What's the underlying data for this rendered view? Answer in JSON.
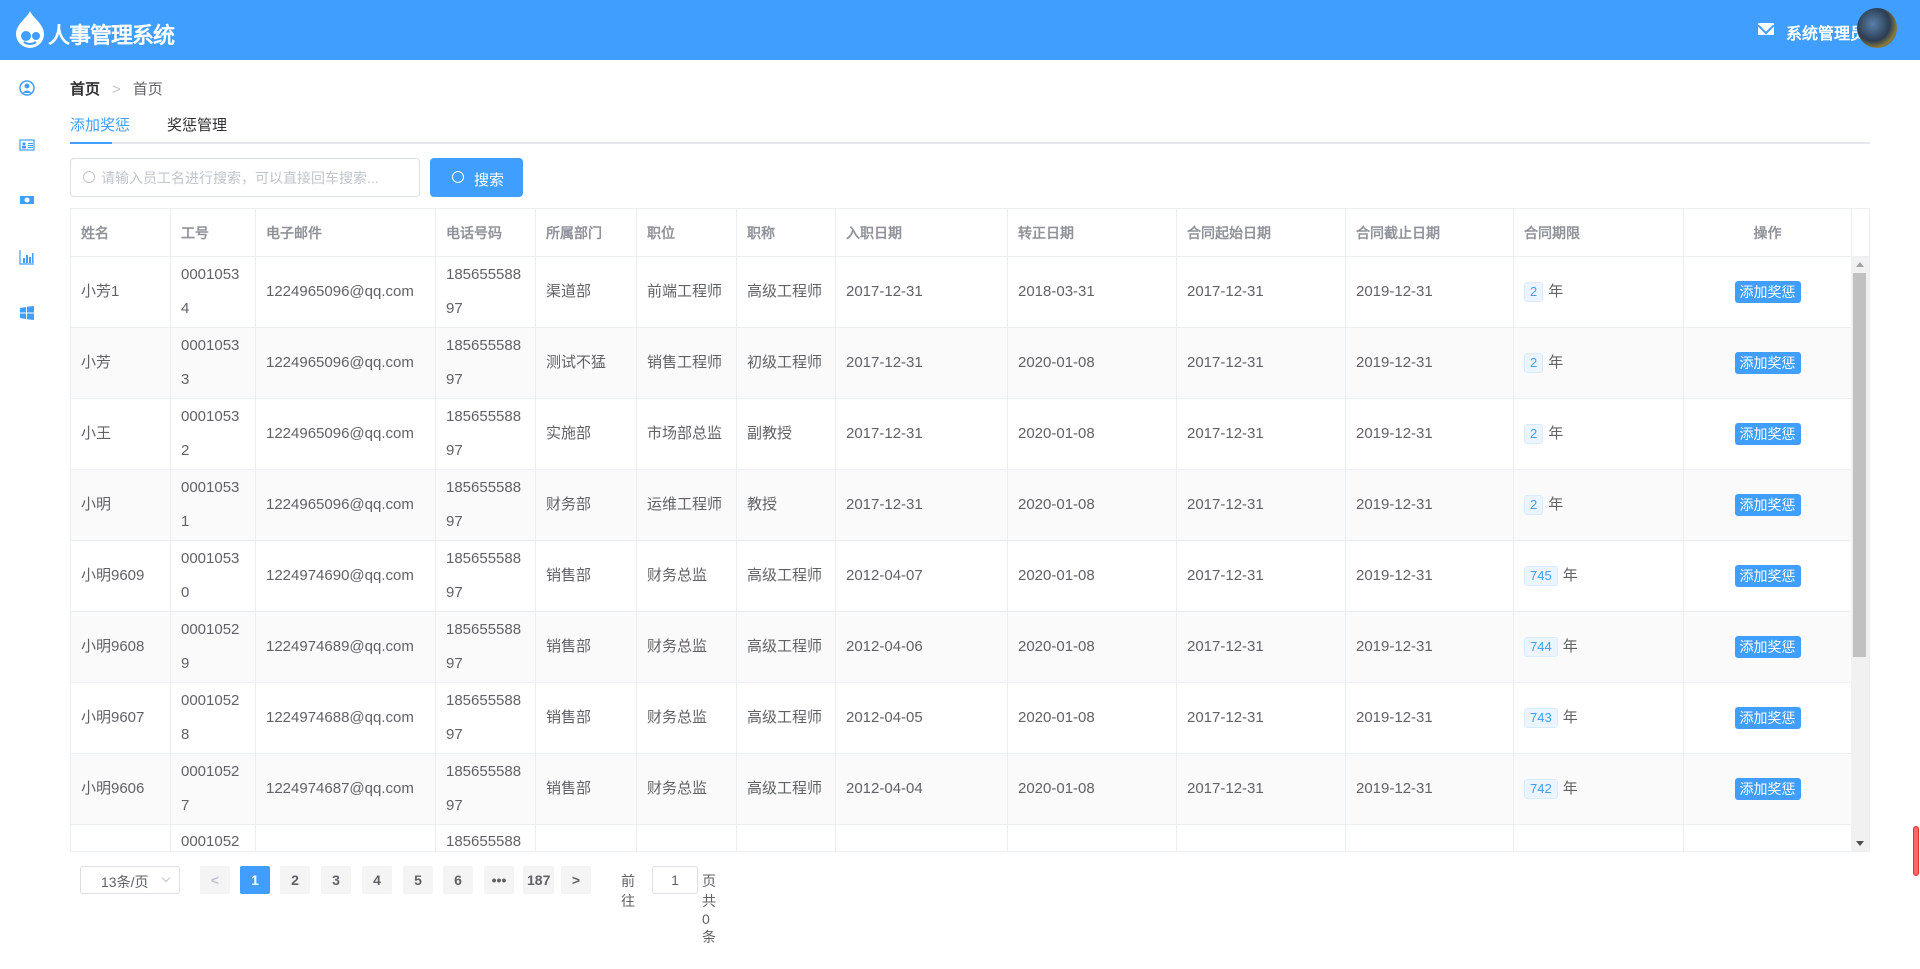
{
  "header": {
    "title": "人事管理系统",
    "user": "系统管理员",
    "brand_color": "#409EFF",
    "icons": [
      "drop-logo",
      "mail-icon",
      "avatar"
    ]
  },
  "sidebar": {
    "icons": [
      "user-circle-icon",
      "id-card-icon",
      "money-icon",
      "bar-chart-icon",
      "windows-icon"
    ]
  },
  "breadcrumb": [
    "首页",
    "首页"
  ],
  "tabs": [
    {
      "label": "添加奖惩",
      "active": true
    },
    {
      "label": "奖惩管理",
      "active": false
    }
  ],
  "search": {
    "placeholder": "请输入员工名进行搜索，可以直接回车搜索...",
    "value": "",
    "button": "搜索"
  },
  "table": {
    "columns": [
      "姓名",
      "工号",
      "电子邮件",
      "电话号码",
      "所属部门",
      "职位",
      "职称",
      "入职日期",
      "转正日期",
      "合同起始日期",
      "合同截止日期",
      "合同期限",
      "操作"
    ],
    "unit": "年",
    "action": "添加奖惩",
    "rows": [
      [
        "小芳1",
        "00010534",
        "1224965096@qq.com",
        "18565558897",
        "渠道部",
        "前端工程师",
        "高级工程师",
        "2017-12-31",
        "2018-03-31",
        "2017-12-31",
        "2019-12-31",
        "2"
      ],
      [
        "小芳",
        "00010533",
        "1224965096@qq.com",
        "18565558897",
        "测试不猛",
        "销售工程师",
        "初级工程师",
        "2017-12-31",
        "2020-01-08",
        "2017-12-31",
        "2019-12-31",
        "2"
      ],
      [
        "小王",
        "00010532",
        "1224965096@qq.com",
        "18565558897",
        "实施部",
        "市场部总监",
        "副教授",
        "2017-12-31",
        "2020-01-08",
        "2017-12-31",
        "2019-12-31",
        "2"
      ],
      [
        "小明",
        "00010531",
        "1224965096@qq.com",
        "18565558897",
        "财务部",
        "运维工程师",
        "教授",
        "2017-12-31",
        "2020-01-08",
        "2017-12-31",
        "2019-12-31",
        "2"
      ],
      [
        "小明9609",
        "00010530",
        "1224974690@qq.com",
        "18565558897",
        "销售部",
        "财务总监",
        "高级工程师",
        "2012-04-07",
        "2020-01-08",
        "2017-12-31",
        "2019-12-31",
        "745"
      ],
      [
        "小明9608",
        "00010529",
        "1224974689@qq.com",
        "18565558897",
        "销售部",
        "财务总监",
        "高级工程师",
        "2012-04-06",
        "2020-01-08",
        "2017-12-31",
        "2019-12-31",
        "744"
      ],
      [
        "小明9607",
        "00010528",
        "1224974688@qq.com",
        "18565558897",
        "销售部",
        "财务总监",
        "高级工程师",
        "2012-04-05",
        "2020-01-08",
        "2017-12-31",
        "2019-12-31",
        "743"
      ],
      [
        "小明9606",
        "00010527",
        "1224974687@qq.com",
        "18565558897",
        "销售部",
        "财务总监",
        "高级工程师",
        "2012-04-04",
        "2020-01-08",
        "2017-12-31",
        "2019-12-31",
        "742"
      ],
      [
        "",
        "0001052",
        "",
        "185655588",
        "",
        "",
        "",
        "",
        "",
        "",
        "",
        ""
      ]
    ]
  },
  "pagination": {
    "page_size": "13条/页",
    "pages": [
      "1",
      "2",
      "3",
      "4",
      "5",
      "6",
      "•••",
      "187"
    ],
    "current": "1",
    "goto_label": "前往",
    "goto_value": "1",
    "total_label": "页共 0 条"
  }
}
